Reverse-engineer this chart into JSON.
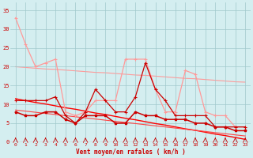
{
  "x": [
    0,
    1,
    2,
    3,
    4,
    5,
    6,
    7,
    8,
    9,
    10,
    11,
    12,
    13,
    14,
    15,
    16,
    17,
    18,
    19,
    20,
    21,
    22,
    23
  ],
  "line_rafales": [
    33,
    26,
    20,
    21,
    22,
    8,
    7,
    8,
    11,
    11,
    11,
    22,
    22,
    22,
    14,
    8,
    8,
    19,
    18,
    8,
    7,
    7,
    4,
    4
  ],
  "line_vent": [
    11,
    11,
    11,
    11,
    12,
    7,
    5,
    8,
    14,
    11,
    8,
    8,
    12,
    21,
    14,
    11,
    7,
    7,
    7,
    7,
    4,
    4,
    4,
    4
  ],
  "line_moy": [
    8,
    7,
    7,
    8,
    8,
    6,
    5,
    7,
    7,
    7,
    5,
    5,
    8,
    7,
    7,
    6,
    6,
    6,
    5,
    5,
    4,
    4,
    3,
    3
  ],
  "trend_rafales": [
    11.5,
    11.0,
    10.5,
    10.1,
    9.6,
    9.1,
    8.7,
    8.2,
    7.7,
    7.3,
    6.8,
    6.3,
    5.9,
    5.4,
    4.9,
    4.5,
    4.0,
    3.5,
    3.1,
    2.6,
    2.1,
    1.7,
    1.2,
    0.7
  ],
  "trend_vent": [
    8.5,
    8.2,
    7.9,
    7.6,
    7.3,
    7.0,
    6.7,
    6.4,
    6.1,
    5.8,
    5.5,
    5.2,
    4.9,
    4.6,
    4.3,
    4.0,
    3.7,
    3.4,
    3.1,
    2.8,
    2.5,
    2.2,
    1.9,
    1.6
  ],
  "trend_upper": [
    20.0,
    19.8,
    19.6,
    19.4,
    19.3,
    19.1,
    18.9,
    18.7,
    18.5,
    18.4,
    18.2,
    18.0,
    17.8,
    17.7,
    17.5,
    17.3,
    17.1,
    16.9,
    16.8,
    16.6,
    16.4,
    16.2,
    16.0,
    15.9
  ],
  "bg_color": "#d4eef0",
  "grid_color": "#a0c8cc",
  "color_rafales": "#ff9999",
  "color_vent": "#cc0000",
  "color_moy": "#cc0000",
  "color_trend1": "#ff0000",
  "color_trend2": "#ff4444",
  "color_trend3": "#ff9999",
  "xlabel": "Vent moyen/en rafales ( km/h )",
  "ylim": [
    0,
    37
  ],
  "xlim": [
    -0.5,
    23.5
  ],
  "yticks": [
    0,
    5,
    10,
    15,
    20,
    25,
    30,
    35
  ],
  "xtick_labels": [
    "0",
    "1",
    "2",
    "3",
    "4",
    "5",
    "6",
    "7",
    "8",
    "9",
    "10",
    "11",
    "12",
    "13",
    "14",
    "15",
    "16",
    "17",
    "18",
    "19",
    "20",
    "21",
    "22",
    "23"
  ]
}
